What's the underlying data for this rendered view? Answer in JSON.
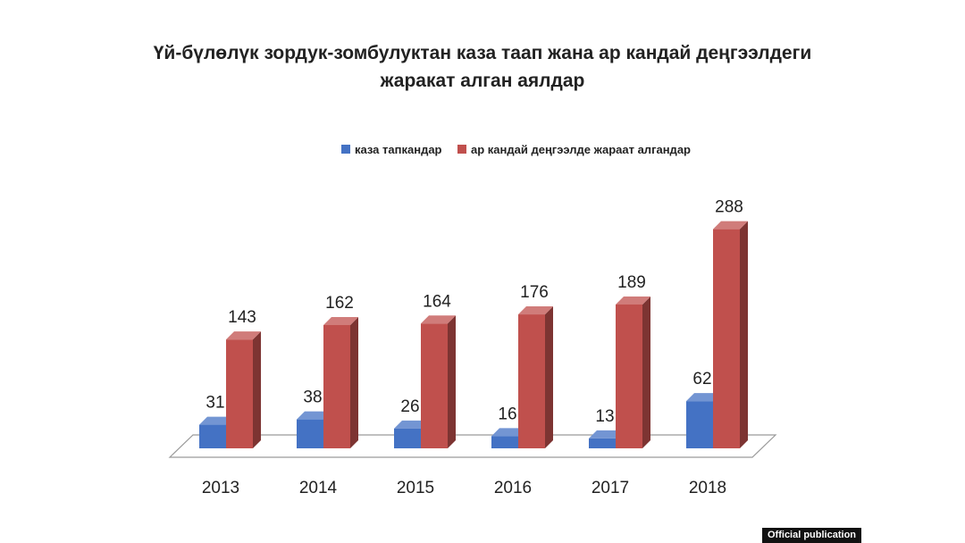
{
  "chart_data": {
    "type": "bar",
    "title": [
      "Үй-бүлөлүк зордук-зомбулуктан каза таап жана ар кандай деңгээлдеги",
      "жаракат алган аялдар"
    ],
    "categories": [
      "2013",
      "2014",
      "2015",
      "2016",
      "2017",
      "2018"
    ],
    "series": [
      {
        "name": "каза тапкандар",
        "values": [
          31,
          38,
          26,
          16,
          13,
          62
        ],
        "color": "#4472C4"
      },
      {
        "name": "ар кандай деңгээлде жараат алгандар",
        "values": [
          143,
          162,
          164,
          176,
          189,
          288
        ],
        "color": "#C0504D"
      }
    ],
    "data_labels": true,
    "ylim": [
      0,
      300
    ],
    "grid": false,
    "legend_position": "top-center",
    "style": "3d-columns"
  },
  "source_badge": "Official publication"
}
